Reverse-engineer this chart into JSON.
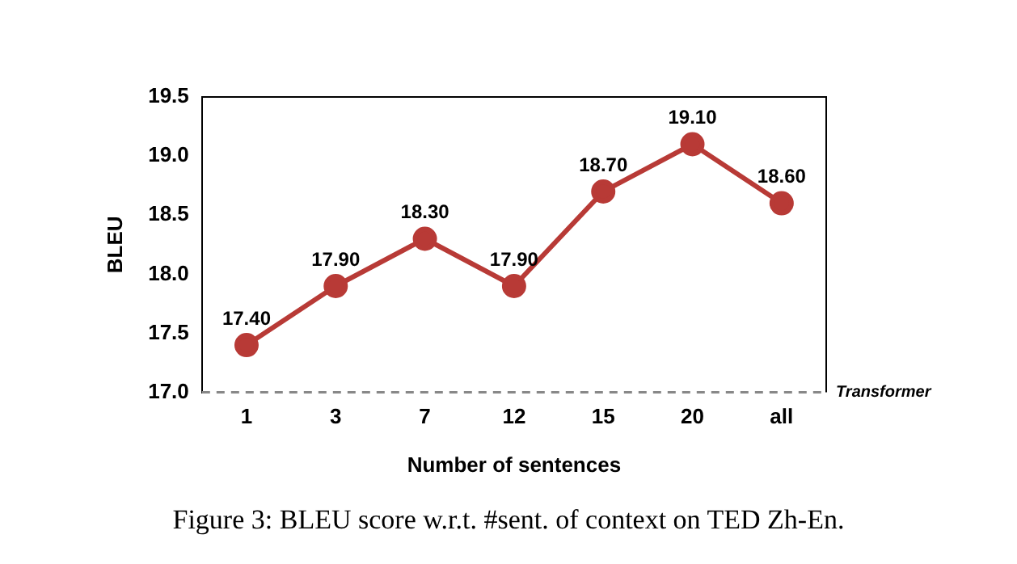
{
  "chart_data": {
    "type": "line",
    "ylabel": "BLEU",
    "xlabel": "Number of sentences",
    "categories": [
      "1",
      "3",
      "7",
      "12",
      "15",
      "20",
      "all"
    ],
    "series": [
      {
        "color": "#b83a36",
        "values": [
          17.4,
          17.9,
          18.3,
          17.9,
          18.7,
          19.1,
          18.6
        ],
        "value_labels": [
          "17.40",
          "17.90",
          "18.30",
          "17.90",
          "18.70",
          "19.10",
          "18.60"
        ]
      }
    ],
    "ylim": [
      17,
      19.5
    ],
    "yticks": [
      {
        "value": 17,
        "label": "17.0"
      },
      {
        "value": 17.5,
        "label": "17.5"
      },
      {
        "value": 18,
        "label": "18.0"
      },
      {
        "value": 18.5,
        "label": "18.5"
      },
      {
        "value": 19,
        "label": "19.0"
      },
      {
        "value": 19.5,
        "label": "19.5"
      }
    ],
    "ref_lines": [
      {
        "axis": "y",
        "value": 17,
        "label": "Transformer",
        "color": "#888888",
        "line_style": "dashed"
      }
    ],
    "grid": false,
    "legend": false,
    "marker": "circle",
    "line_style": "solid",
    "annotations": [
      "Figure 3: BLEU score w.r.t. #sent. of context on TED Zh-En."
    ]
  }
}
